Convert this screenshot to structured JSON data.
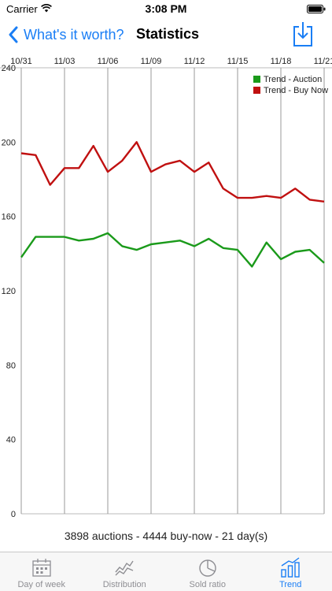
{
  "status_bar": {
    "carrier": "Carrier",
    "time": "3:08 PM"
  },
  "nav": {
    "back_label": "What's it worth?",
    "title": "Statistics"
  },
  "chart_data": {
    "type": "line",
    "x": [
      "10/31",
      "11/01",
      "11/02",
      "11/03",
      "11/04",
      "11/05",
      "11/06",
      "11/07",
      "11/08",
      "11/09",
      "11/10",
      "11/11",
      "11/12",
      "11/13",
      "11/14",
      "11/15",
      "11/16",
      "11/17",
      "11/18",
      "11/19",
      "11/20",
      "11/21"
    ],
    "x_tick_labels": [
      "10/31",
      "11/03",
      "11/06",
      "11/09",
      "11/12",
      "11/15",
      "11/18",
      "11/21"
    ],
    "series": [
      {
        "name": "Trend - Auction",
        "color": "#1a9a1a",
        "values": [
          138,
          149,
          149,
          149,
          147,
          148,
          151,
          144,
          142,
          145,
          146,
          147,
          144,
          148,
          143,
          142,
          133,
          146,
          137,
          141,
          142,
          135
        ]
      },
      {
        "name": "Trend - Buy Now",
        "color": "#c01010",
        "values": [
          194,
          193,
          177,
          186,
          186,
          198,
          184,
          190,
          200,
          184,
          188,
          190,
          184,
          189,
          175,
          170,
          170,
          171,
          170,
          175,
          169,
          168
        ]
      }
    ],
    "ylim": [
      0,
      240
    ],
    "y_ticks": [
      0,
      40,
      80,
      120,
      160,
      200,
      240
    ],
    "legend_position": "top-right",
    "grid": "vertical"
  },
  "summary": "3898 auctions - 4444 buy-now - 21 day(s)",
  "tabs": [
    {
      "label": "Day of week",
      "icon": "calendar-icon",
      "active": false
    },
    {
      "label": "Distribution",
      "icon": "distribution-icon",
      "active": false
    },
    {
      "label": "Sold ratio",
      "icon": "pie-icon",
      "active": false
    },
    {
      "label": "Trend",
      "icon": "trend-icon",
      "active": true
    }
  ],
  "colors": {
    "accent": "#1a7ef5",
    "inactive": "#8e8e93"
  }
}
